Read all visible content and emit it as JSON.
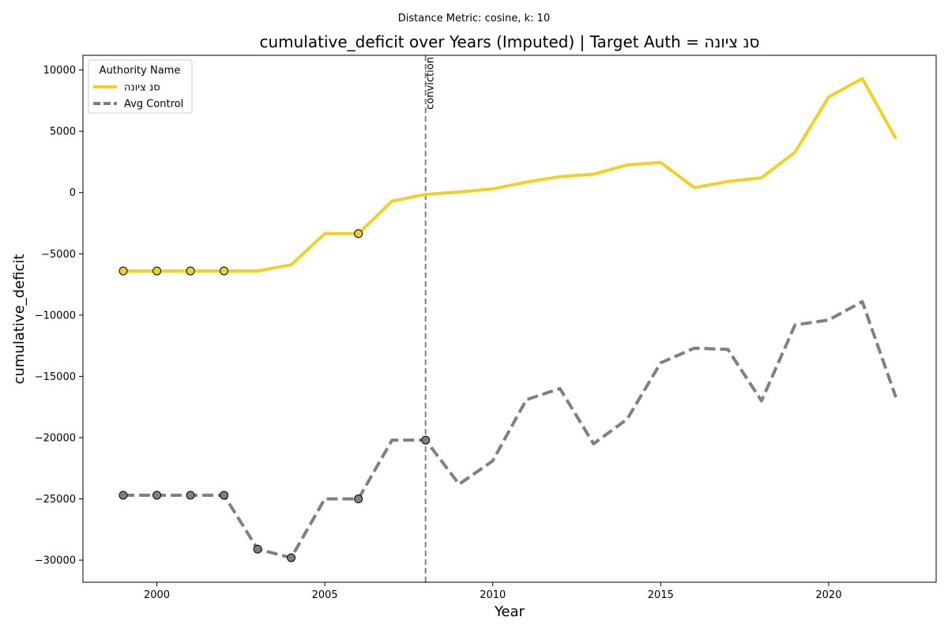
{
  "chart_data": {
    "type": "line",
    "suptitle": "Distance Metric: cosine, k: 10",
    "title": "cumulative_deficit over Years (Imputed) | Target Auth = סנ ציונה",
    "xlabel": "Year",
    "ylabel": "cumulative_deficit",
    "xlim": [
      1997.8,
      2023.2
    ],
    "ylim": [
      -31800,
      11200
    ],
    "x_ticks": [
      2000,
      2005,
      2010,
      2015,
      2020
    ],
    "y_ticks": [
      10000,
      5000,
      0,
      -5000,
      -10000,
      -15000,
      -20000,
      -25000,
      -30000
    ],
    "x_tick_labels": [
      "2000",
      "2005",
      "2010",
      "2015",
      "2020"
    ],
    "y_tick_labels": [
      "10000",
      "5000",
      "0",
      "−5000",
      "−10000",
      "−15000",
      "−20000",
      "−25000",
      "−30000"
    ],
    "grid": false,
    "legend": {
      "title": "Authority Name",
      "placement": "top-left"
    },
    "x": [
      1999,
      2000,
      2001,
      2002,
      2003,
      2004,
      2005,
      2006,
      2007,
      2008,
      2009,
      2010,
      2011,
      2012,
      2013,
      2014,
      2015,
      2016,
      2017,
      2018,
      2019,
      2020,
      2021,
      2022
    ],
    "series": [
      {
        "name": "סנ ציונה",
        "color": "#f2d024",
        "style": "solid",
        "values": [
          -6400,
          -6400,
          -6400,
          -6400,
          -6400,
          -5900,
          -3350,
          -3350,
          -700,
          -150,
          50,
          300,
          850,
          1300,
          1500,
          2250,
          2450,
          400,
          900,
          1200,
          3300,
          7800,
          9300,
          4400
        ],
        "imputed_x": [
          1999,
          2000,
          2001,
          2002,
          2006
        ]
      },
      {
        "name": "Avg Control",
        "color": "#808080",
        "style": "dashed",
        "values": [
          -24700,
          -24700,
          -24700,
          -24700,
          -29100,
          -29800,
          -25000,
          -25000,
          -20200,
          -20200,
          -23800,
          -21900,
          -16900,
          -16000,
          -20500,
          -18500,
          -13900,
          -12700,
          -12800,
          -17000,
          -10800,
          -10400,
          -8900,
          -16700
        ],
        "imputed_x": [
          1999,
          2000,
          2001,
          2002,
          2003,
          2004,
          2006,
          2008
        ]
      }
    ],
    "annotations": [
      {
        "type": "vline",
        "x": 2008,
        "label": "conviction",
        "color": "#808080"
      }
    ]
  }
}
